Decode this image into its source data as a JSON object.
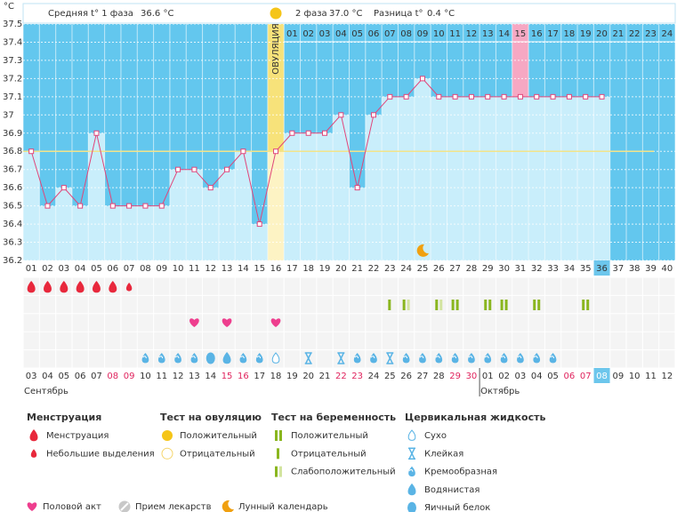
{
  "chart_data": {
    "type": "line",
    "yunit": "°C",
    "header": {
      "phase1": "Средняя t° 1 фаза",
      "phase1_value": "36.6 °C",
      "phase2": "2 фаза",
      "phase2_value": "37.0 °C",
      "difference": "Разница t°",
      "difference_value": "0.4 °C"
    },
    "categories": [
      "01",
      "02",
      "03",
      "04",
      "05",
      "06",
      "07",
      "08",
      "09",
      "10",
      "11",
      "12",
      "13",
      "14",
      "15",
      "16",
      "17",
      "18",
      "19",
      "20",
      "21",
      "22",
      "23",
      "24",
      "25",
      "26",
      "27",
      "28",
      "29",
      "30",
      "31",
      "32",
      "33",
      "34",
      "35",
      "36",
      "37",
      "38",
      "39",
      "40"
    ],
    "values": [
      36.8,
      36.5,
      36.6,
      36.5,
      36.9,
      36.5,
      36.5,
      36.5,
      36.5,
      36.7,
      36.7,
      36.6,
      36.7,
      36.8,
      36.4,
      36.8,
      36.9,
      36.9,
      36.9,
      37.0,
      36.6,
      37.0,
      37.1,
      37.1,
      37.2,
      37.1,
      37.1,
      37.1,
      37.1,
      37.1,
      37.1,
      37.1,
      37.1,
      37.1,
      37.1,
      37.1,
      null,
      null,
      null,
      null
    ],
    "color": "#e0457a",
    "ylim": [
      36.2,
      37.5
    ],
    "yticks": [
      36.2,
      36.3,
      36.4,
      36.5,
      36.6,
      36.7,
      36.8,
      36.9,
      37,
      37.1,
      37.2,
      37.3,
      37.4,
      37.5
    ],
    "grid": true,
    "cover_line": 36.8,
    "ovulation_day": 16,
    "ovulation_label": "ОВУЛЯЦИЯ",
    "phase2_days": [
      "01",
      "02",
      "03",
      "04",
      "05",
      "06",
      "07",
      "08",
      "09",
      "10",
      "11",
      "12",
      "13",
      "14",
      "15",
      "16",
      "17",
      "18",
      "19",
      "20",
      "21",
      "22",
      "23",
      "24"
    ],
    "phase2_highlight": 15,
    "current_day": 36,
    "dates": [
      "03",
      "04",
      "05",
      "06",
      "07",
      "08",
      "09",
      "10",
      "11",
      "12",
      "13",
      "14",
      "15",
      "16",
      "17",
      "18",
      "19",
      "20",
      "21",
      "22",
      "23",
      "24",
      "25",
      "26",
      "27",
      "28",
      "29",
      "30",
      "01",
      "02",
      "03",
      "04",
      "05",
      "06",
      "07",
      "08",
      "09",
      "10",
      "11",
      "12"
    ],
    "weekend_days": [
      6,
      7,
      13,
      14,
      20,
      21,
      27,
      28,
      34,
      35
    ],
    "months": [
      {
        "label": "Сентябрь",
        "day": 1
      },
      {
        "label": "Октябрь",
        "day": 29
      }
    ],
    "legend": [
      {
        "title": "Менструация",
        "items": [
          {
            "label": "Менструация",
            "days": [
              1,
              2,
              3,
              4,
              5,
              6
            ]
          },
          {
            "label": "Небольшие выделения",
            "days": [
              7
            ]
          }
        ]
      },
      {
        "title": "Тест на овуляцию",
        "items": [
          {
            "label": "Положительный",
            "days": []
          },
          {
            "label": "Отрицательный",
            "days": []
          }
        ]
      },
      {
        "title": "Тест на беременность",
        "items": [
          {
            "label": "Положительный",
            "days": [
              27,
              29,
              30,
              32,
              35
            ]
          },
          {
            "label": "Отрицательный",
            "days": [
              23
            ]
          },
          {
            "label": "Слабоположительный",
            "days": [
              24,
              26
            ]
          }
        ]
      },
      {
        "title": "Цервикальная жидкость",
        "items": [
          {
            "label": "Сухо",
            "days": [
              16
            ]
          },
          {
            "label": "Клейкая",
            "days": [
              18,
              20,
              23
            ]
          },
          {
            "label": "Кремообразная",
            "days": [
              8,
              9,
              10,
              11,
              14,
              15,
              21,
              22,
              24,
              25,
              26,
              27,
              28,
              29,
              30,
              31,
              32,
              33
            ]
          },
          {
            "label": "Водянистая",
            "days": [
              13
            ]
          },
          {
            "label": "Яичный белок",
            "days": [
              12
            ]
          }
        ]
      }
    ],
    "extra_legend": [
      {
        "label": "Половой акт",
        "days": [
          11,
          13,
          16
        ]
      },
      {
        "label": "Прием лекарств",
        "days": []
      },
      {
        "label": "Лунный календарь",
        "days": [
          25
        ]
      }
    ]
  }
}
